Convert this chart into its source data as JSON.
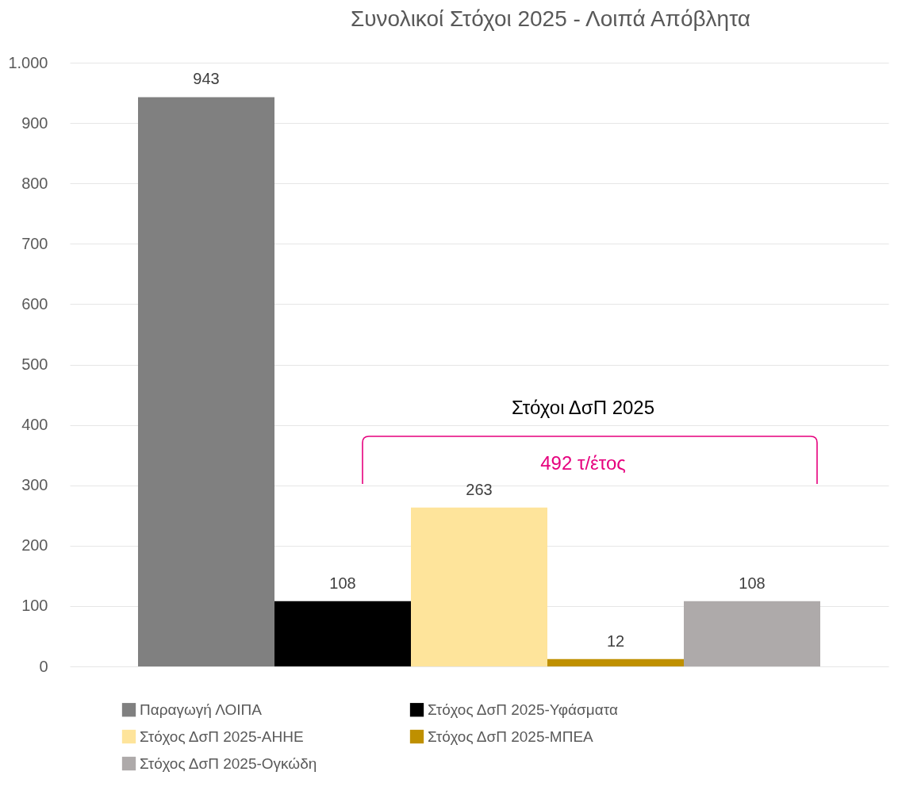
{
  "chart_data": {
    "type": "bar",
    "title": "Συνολικοί Στόχοι 2025 - Λοιπά Απόβλητα",
    "categories": [
      null
    ],
    "series": [
      {
        "name": "Παραγωγή ΛΟΙΠΑ",
        "color": "#808080",
        "values": [
          943
        ]
      },
      {
        "name": "Στόχος ΔσΠ 2025-Υφάσματα",
        "color": "#000000",
        "values": [
          108
        ]
      },
      {
        "name": "Στόχος ΔσΠ 2025-ΑΗΗΕ",
        "color": "#fee49b",
        "values": [
          263
        ]
      },
      {
        "name": "Στόχος ΔσΠ 2025-ΜΠΕΑ",
        "color": "#bf9000",
        "values": [
          12
        ]
      },
      {
        "name": "Στόχος ΔσΠ 2025-Ογκώδη",
        "color": "#aeaaaa",
        "values": [
          108
        ]
      }
    ],
    "ylim": [
      0,
      1000
    ],
    "yticks": [
      0,
      100,
      200,
      300,
      400,
      500,
      600,
      700,
      800,
      900,
      {
        "value": 1000,
        "label": "1.000"
      }
    ],
    "grid": "y",
    "legend": "bottom",
    "data_labels": true,
    "tick_labels": "y",
    "annotations": [
      "Στόχοι ΔσΠ 2025",
      "492 τ/έτος"
    ]
  }
}
